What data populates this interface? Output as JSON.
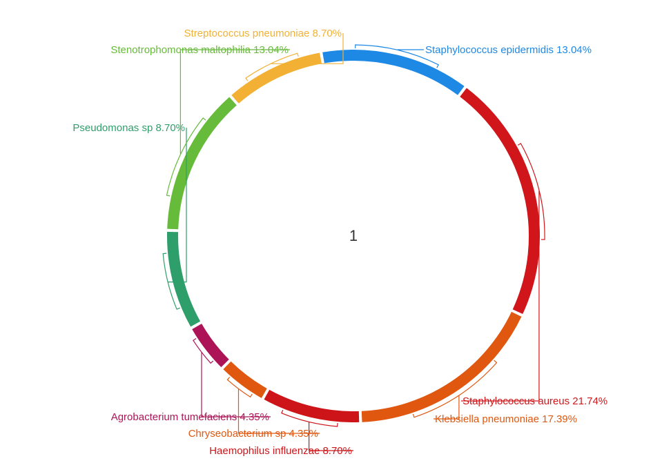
{
  "chart_data": {
    "type": "pie",
    "center_label": "1",
    "slices": [
      {
        "name": "Staphylococcus epidermidis",
        "value": 13.04,
        "color": "#1e88e5",
        "label": "Staphylococcus epidermidis 13.04%"
      },
      {
        "name": "Staphylococcus aureus",
        "value": 21.74,
        "color": "#d0161b",
        "label": "Staphylococcus aureus 21.74%"
      },
      {
        "name": "Klebsiella pneumoniae",
        "value": 17.39,
        "color": "#e0570f",
        "label": "Klebsiella pneumoniae 17.39%"
      },
      {
        "name": "Haemophilus influenzae",
        "value": 8.7,
        "color": "#cc1419",
        "label": "Haemophilus influenzae 8.70%"
      },
      {
        "name": "Chryseobacterium sp",
        "value": 4.35,
        "color": "#e0570f",
        "label": "Chryseobacterium sp 4.35%"
      },
      {
        "name": "Agrobacterium tumefaciens",
        "value": 4.35,
        "color": "#ad1457",
        "label": "Agrobacterium tumefaciens 4.35%"
      },
      {
        "name": "Pseudomonas sp",
        "value": 8.7,
        "color": "#2e9e6a",
        "label": "Pseudomonas sp 8.70%"
      },
      {
        "name": "Stenotrophomonas maltophilia",
        "value": 13.04,
        "color": "#66bb3a",
        "label": "Stenotrophomonas maltophilia 13.04%"
      },
      {
        "name": "Streptococcus pneumoniae",
        "value": 8.7,
        "color": "#f2b134",
        "label": "Streptococcus pneumoniae 8.70%"
      }
    ]
  }
}
